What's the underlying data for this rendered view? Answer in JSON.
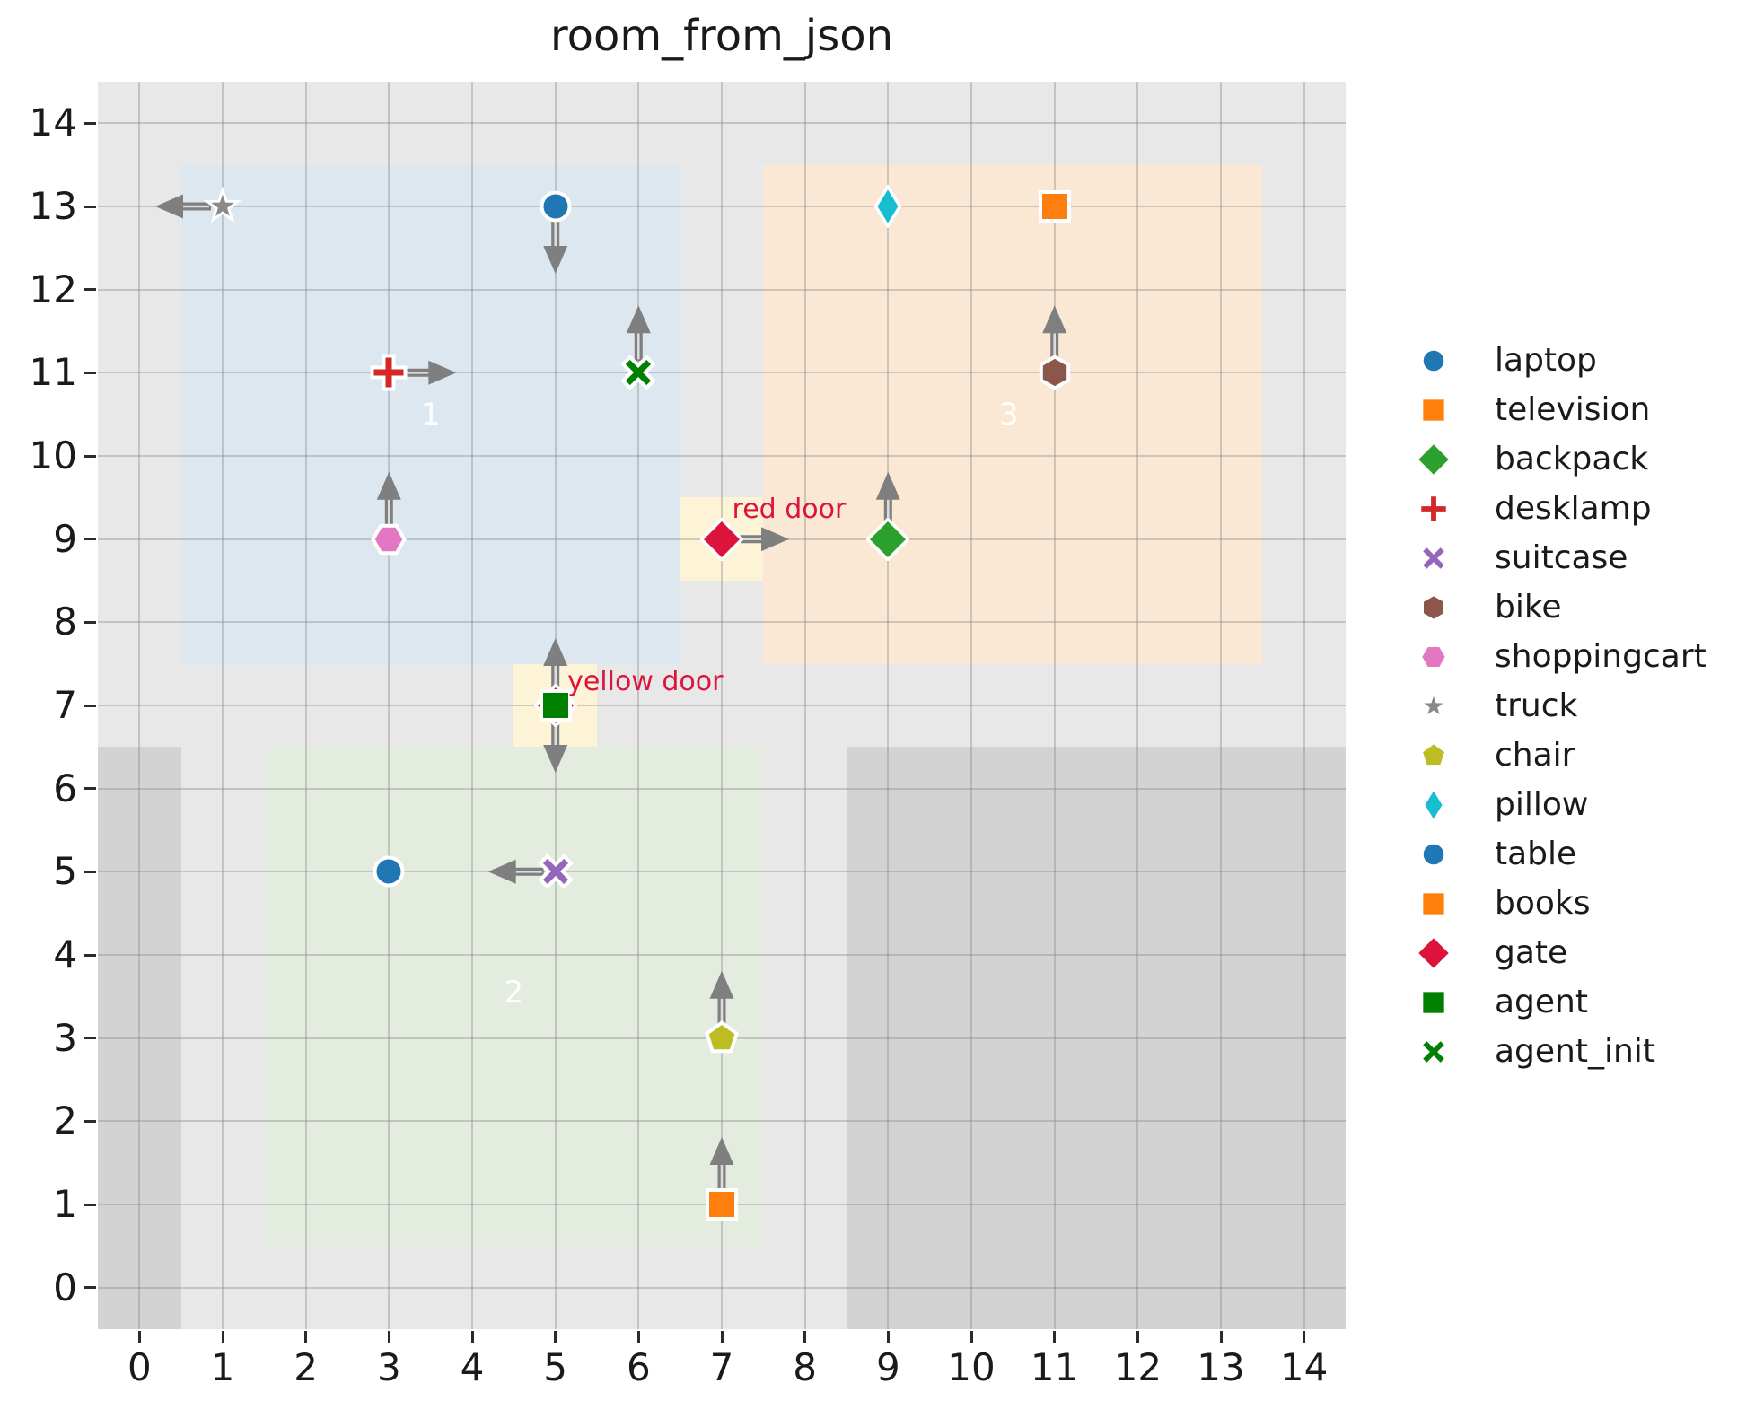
{
  "chart_data": {
    "type": "scatter",
    "title": "room_from_json",
    "xlabel": "",
    "ylabel": "",
    "xlim": [
      -0.5,
      14.5
    ],
    "ylim": [
      -0.5,
      14.5
    ],
    "xticks": [
      "0",
      "1",
      "2",
      "3",
      "4",
      "5",
      "6",
      "7",
      "8",
      "9",
      "10",
      "11",
      "12",
      "13",
      "14"
    ],
    "yticks": [
      "0",
      "1",
      "2",
      "3",
      "4",
      "5",
      "6",
      "7",
      "8",
      "9",
      "10",
      "11",
      "12",
      "13",
      "14"
    ],
    "grid": true,
    "legend_position": "right",
    "colors": {
      "figure_bg": "#ffffff",
      "plot_bg": "#e9e8e8",
      "wall": "#d4d3d3",
      "grid": "rgba(140,140,140,0.40)",
      "arrow": "#7f7f7f",
      "arrow_stripe": "#dcdcdc",
      "door_fill": "#fdf3d6",
      "door_label": "#dc143c",
      "room_label": "rgba(255,255,255,0.92)"
    },
    "walls": [
      {
        "id": "wall-left",
        "x0": -0.5,
        "x1": 0.5,
        "y0": -0.5,
        "y1": 6.5
      },
      {
        "id": "wall-bottom-right",
        "x0": 8.5,
        "x1": 14.5,
        "y0": -0.5,
        "y1": 6.5
      }
    ],
    "rooms": [
      {
        "id": "1",
        "x0": 0.5,
        "x1": 6.5,
        "y0": 7.5,
        "y1": 13.5,
        "color": "#dde7f0",
        "label_x": 3.5,
        "label_y": 10.5
      },
      {
        "id": "2",
        "x0": 1.5,
        "x1": 7.5,
        "y0": 0.5,
        "y1": 6.5,
        "color": "#e3ecdf",
        "label_x": 4.5,
        "label_y": 3.55
      },
      {
        "id": "3",
        "x0": 7.5,
        "x1": 13.5,
        "y0": 7.5,
        "y1": 13.5,
        "color": "#fbe8d4",
        "label_x": 10.45,
        "label_y": 10.5
      }
    ],
    "doors": [
      {
        "id": "red-door",
        "x0": 6.5,
        "x1": 7.5,
        "y0": 8.5,
        "y1": 9.5
      },
      {
        "id": "yellow-door",
        "x0": 4.5,
        "x1": 5.5,
        "y0": 6.5,
        "y1": 7.5
      }
    ],
    "door_labels": [
      {
        "text": "red door",
        "x": 7.06,
        "y": 9.35
      },
      {
        "text": "yellow door",
        "x": 5.08,
        "y": 7.28
      }
    ],
    "points": [
      {
        "name": "truck",
        "marker": "star",
        "color": "#8a8a8a",
        "x": 1,
        "y": 13,
        "arrows": [
          "left"
        ]
      },
      {
        "name": "laptop",
        "marker": "circle",
        "color": "#1f77b4",
        "x": 5,
        "y": 13,
        "arrows": [
          "down"
        ]
      },
      {
        "name": "pillow",
        "marker": "thin-diamond",
        "color": "#17becf",
        "x": 9,
        "y": 13,
        "arrows": []
      },
      {
        "name": "television",
        "marker": "square",
        "color": "#ff7f0e",
        "x": 11,
        "y": 13,
        "arrows": []
      },
      {
        "name": "desklamp",
        "marker": "plus",
        "color": "#d62728",
        "x": 3,
        "y": 11,
        "arrows": [
          "right"
        ]
      },
      {
        "name": "agent_init",
        "marker": "x",
        "color": "#008000",
        "x": 6,
        "y": 11,
        "arrows": [
          "up"
        ]
      },
      {
        "name": "bike",
        "marker": "hexagon-v",
        "color": "#8c564b",
        "x": 11,
        "y": 11,
        "arrows": [
          "up"
        ]
      },
      {
        "name": "shoppingcart",
        "marker": "hexagon-h",
        "color": "#e377c2",
        "x": 3,
        "y": 9,
        "arrows": [
          "up"
        ]
      },
      {
        "name": "gate-red-door",
        "marker": "diamond",
        "color": "#dc143c",
        "x": 7,
        "y": 9,
        "arrows": [
          "right"
        ]
      },
      {
        "name": "backpack",
        "marker": "diamond",
        "color": "#2ca02c",
        "x": 9,
        "y": 9,
        "arrows": [
          "up"
        ]
      },
      {
        "name": "gate-yellow-door",
        "marker": "diamond",
        "color": "#dc143c",
        "x": 5,
        "y": 7,
        "arrows": []
      },
      {
        "name": "agent",
        "marker": "square",
        "color": "#008000",
        "x": 5,
        "y": 7,
        "arrows": [
          "up",
          "down"
        ]
      },
      {
        "name": "table",
        "marker": "circle",
        "color": "#1f77b4",
        "x": 3,
        "y": 5,
        "arrows": []
      },
      {
        "name": "suitcase",
        "marker": "x",
        "color": "#9467bd",
        "x": 5,
        "y": 5,
        "arrows": [
          "left"
        ]
      },
      {
        "name": "chair",
        "marker": "pentagon",
        "color": "#bcbd22",
        "x": 7,
        "y": 3,
        "arrows": [
          "up"
        ]
      },
      {
        "name": "books",
        "marker": "square",
        "color": "#ff7f0e",
        "x": 7,
        "y": 1,
        "arrows": [
          "up"
        ]
      }
    ],
    "legend": [
      {
        "label": "laptop",
        "marker": "circle",
        "color": "#1f77b4"
      },
      {
        "label": "television",
        "marker": "square",
        "color": "#ff7f0e"
      },
      {
        "label": "backpack",
        "marker": "diamond",
        "color": "#2ca02c"
      },
      {
        "label": "desklamp",
        "marker": "plus",
        "color": "#d62728"
      },
      {
        "label": "suitcase",
        "marker": "x",
        "color": "#9467bd"
      },
      {
        "label": "bike",
        "marker": "hexagon-v",
        "color": "#8c564b"
      },
      {
        "label": "shoppingcart",
        "marker": "hexagon-h",
        "color": "#e377c2"
      },
      {
        "label": "truck",
        "marker": "star",
        "color": "#8a8a8a"
      },
      {
        "label": "chair",
        "marker": "pentagon",
        "color": "#bcbd22"
      },
      {
        "label": "pillow",
        "marker": "thin-diamond",
        "color": "#17becf"
      },
      {
        "label": "table",
        "marker": "circle",
        "color": "#1f77b4"
      },
      {
        "label": "books",
        "marker": "square",
        "color": "#ff7f0e"
      },
      {
        "label": "gate",
        "marker": "diamond",
        "color": "#dc143c"
      },
      {
        "label": "agent",
        "marker": "square",
        "color": "#008000"
      },
      {
        "label": "agent_init",
        "marker": "x",
        "color": "#008000"
      }
    ]
  }
}
